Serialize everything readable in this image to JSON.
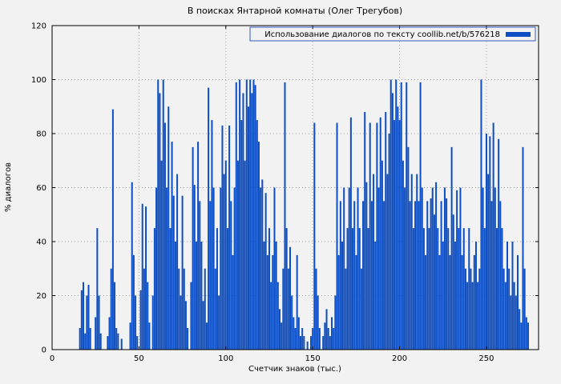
{
  "page": {
    "background": "#f2f2f2"
  },
  "chart_data": {
    "type": "bar",
    "title": "В поисках Янтарной комнаты (Олег Трегубов)",
    "legend": "Использование диалогов по тексту coollib.net/b/576218",
    "xlabel": "Счетчик знаков (тыс.)",
    "ylabel": "% диалогов",
    "xlim": [
      0,
      280
    ],
    "ylim": [
      0,
      120
    ],
    "xticks": [
      0,
      50,
      100,
      150,
      200,
      250
    ],
    "yticks": [
      0,
      20,
      40,
      60,
      80,
      100,
      120
    ],
    "grid": true,
    "legend_position": "top-right",
    "bar_color": "#0d4ec2",
    "x_start": 0,
    "x_step": 1,
    "values": [
      0,
      0,
      0,
      0,
      0,
      0,
      0,
      0,
      0,
      0,
      0,
      0,
      0,
      0,
      0,
      0,
      8,
      22,
      25,
      6,
      20,
      24,
      8,
      0,
      0,
      12,
      45,
      20,
      6,
      0,
      0,
      0,
      5,
      12,
      30,
      89,
      25,
      8,
      6,
      0,
      4,
      0,
      0,
      0,
      0,
      10,
      62,
      35,
      20,
      5,
      0,
      22,
      54,
      30,
      53,
      25,
      10,
      0,
      20,
      45,
      60,
      100,
      95,
      70,
      100,
      84,
      60,
      90,
      45,
      77,
      57,
      40,
      65,
      30,
      20,
      57,
      30,
      18,
      8,
      0,
      25,
      75,
      61,
      40,
      77,
      55,
      40,
      18,
      30,
      10,
      97,
      55,
      85,
      60,
      30,
      45,
      20,
      60,
      83,
      65,
      70,
      45,
      83,
      55,
      35,
      60,
      99,
      70,
      100,
      85,
      95,
      70,
      100,
      90,
      100,
      95,
      100,
      98,
      85,
      77,
      60,
      63,
      40,
      58,
      35,
      45,
      25,
      35,
      60,
      40,
      25,
      15,
      10,
      30,
      99,
      45,
      30,
      38,
      20,
      12,
      8,
      35,
      12,
      5,
      8,
      5,
      0,
      3,
      0,
      5,
      8,
      84,
      30,
      20,
      8,
      0,
      5,
      10,
      15,
      8,
      5,
      12,
      8,
      20,
      84,
      35,
      55,
      40,
      60,
      30,
      45,
      60,
      86,
      45,
      55,
      35,
      60,
      45,
      30,
      55,
      88,
      62,
      45,
      84,
      55,
      65,
      40,
      84,
      60,
      86,
      70,
      55,
      88,
      65,
      80,
      100,
      95,
      85,
      100,
      90,
      85,
      99,
      70,
      60,
      99,
      75,
      55,
      65,
      45,
      55,
      65,
      55,
      99,
      60,
      45,
      35,
      55,
      45,
      56,
      60,
      50,
      62,
      45,
      35,
      55,
      40,
      60,
      56,
      45,
      35,
      75,
      50,
      40,
      59,
      45,
      60,
      35,
      45,
      30,
      25,
      45,
      30,
      25,
      35,
      40,
      25,
      30,
      100,
      60,
      45,
      80,
      65,
      79,
      55,
      84,
      60,
      45,
      78,
      55,
      45,
      30,
      25,
      40,
      30,
      20,
      40,
      25,
      20,
      35,
      15,
      10,
      75,
      30,
      12,
      10,
      0
    ]
  }
}
